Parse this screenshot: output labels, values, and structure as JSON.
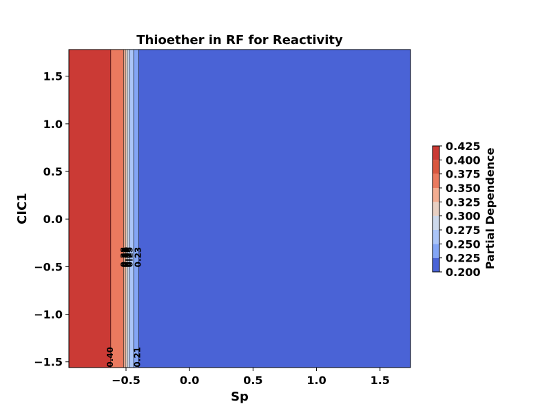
{
  "chart_data": {
    "type": "heatmap",
    "subtype": "filled-contour",
    "title": "Thioether in RF for Reactivity",
    "xlabel": "Sp",
    "ylabel": "CIC1",
    "xlim": [
      -0.95,
      1.74
    ],
    "ylim": [
      -1.56,
      1.78
    ],
    "x_ticks": [
      -0.5,
      0.0,
      0.5,
      1.0,
      1.5
    ],
    "x_tick_labels": [
      "−0.5",
      "0.0",
      "0.5",
      "1.0",
      "1.5"
    ],
    "y_ticks": [
      -1.5,
      -1.0,
      -0.5,
      0.0,
      0.5,
      1.0,
      1.5
    ],
    "y_tick_labels": [
      "−1.5",
      "−1.0",
      "−0.5",
      "0.0",
      "0.5",
      "1.0",
      "1.5"
    ],
    "bands": [
      {
        "x_start": -0.95,
        "x_end": -0.62,
        "value": 0.4125,
        "color": "#cb3a35"
      },
      {
        "x_start": -0.62,
        "x_end": -0.52,
        "value": 0.3625,
        "color": "#ea7a5f"
      },
      {
        "x_start": -0.52,
        "x_end": -0.505,
        "value": 0.3375,
        "color": "#f3ad91"
      },
      {
        "x_start": -0.505,
        "x_end": -0.49,
        "value": 0.3125,
        "color": "#e8d0c3"
      },
      {
        "x_start": -0.49,
        "x_end": -0.475,
        "value": 0.2875,
        "color": "#cdd9ec"
      },
      {
        "x_start": -0.475,
        "x_end": -0.44,
        "value": 0.2625,
        "color": "#abc5f8"
      },
      {
        "x_start": -0.44,
        "x_end": -0.4,
        "value": 0.2375,
        "color": "#84a6f6"
      },
      {
        "x_start": -0.4,
        "x_end": 1.74,
        "value": 0.2125,
        "color": "#4a63d6"
      }
    ],
    "contour_lines": [
      -0.62,
      -0.52,
      -0.505,
      -0.49,
      -0.475,
      -0.44,
      -0.4
    ],
    "contour_labels": [
      {
        "text": "0.38",
        "x": -0.515,
        "y": -0.4
      },
      {
        "text": "0.33",
        "x": -0.505,
        "y": -0.4
      },
      {
        "text": "0.30",
        "x": -0.495,
        "y": -0.4
      },
      {
        "text": "0.28",
        "x": -0.483,
        "y": -0.4
      },
      {
        "text": "0.25",
        "x": -0.47,
        "y": -0.4
      },
      {
        "text": "0.23",
        "x": -0.405,
        "y": -0.4
      },
      {
        "text": "0.40",
        "x": -0.625,
        "y": -1.45
      },
      {
        "text": "0.21",
        "x": -0.41,
        "y": -1.45
      }
    ],
    "colorbar": {
      "label": "Partial Dependence",
      "min": 0.2,
      "max": 0.425,
      "tick_labels": [
        "0.200",
        "0.225",
        "0.250",
        "0.275",
        "0.300",
        "0.325",
        "0.350",
        "0.375",
        "0.400",
        "0.425"
      ],
      "levels": [
        {
          "from": 0.2,
          "to": 0.225,
          "color": "#4a63d6"
        },
        {
          "from": 0.225,
          "to": 0.25,
          "color": "#84a6f6"
        },
        {
          "from": 0.25,
          "to": 0.275,
          "color": "#abc5f8"
        },
        {
          "from": 0.275,
          "to": 0.3,
          "color": "#cdd9ec"
        },
        {
          "from": 0.3,
          "to": 0.325,
          "color": "#e8d0c3"
        },
        {
          "from": 0.325,
          "to": 0.35,
          "color": "#f3ad91"
        },
        {
          "from": 0.35,
          "to": 0.375,
          "color": "#ea7a5f"
        },
        {
          "from": 0.375,
          "to": 0.4,
          "color": "#d9573f"
        },
        {
          "from": 0.4,
          "to": 0.425,
          "color": "#cb3a35"
        }
      ]
    },
    "grid": false
  }
}
